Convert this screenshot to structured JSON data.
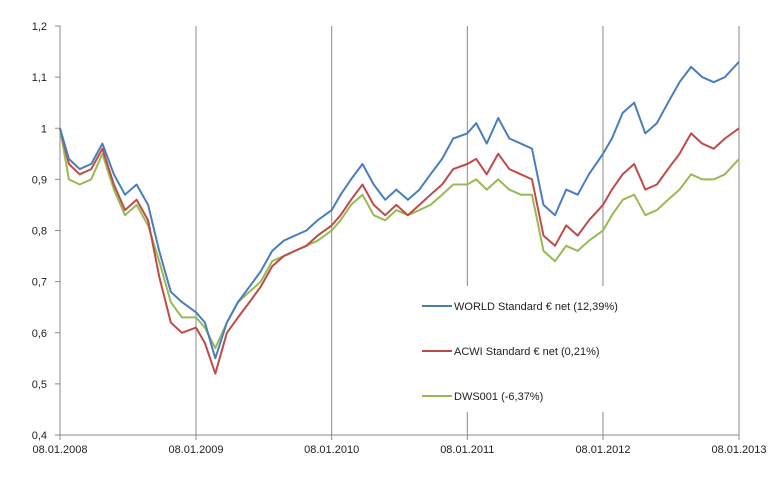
{
  "chart_data": {
    "type": "line",
    "title": "",
    "xlabel": "",
    "ylabel": "",
    "ylim": [
      0.4,
      1.2
    ],
    "yticks": [
      "0,4",
      "0,5",
      "0,6",
      "0,7",
      "0,8",
      "0,9",
      "1",
      "1,1",
      "1,2"
    ],
    "xticks": [
      "08.01.2008",
      "08.01.2009",
      "08.01.2010",
      "08.01.2011",
      "08.01.2012",
      "08.01.2013"
    ],
    "grid": "vertical-major",
    "legend_position": "center-right",
    "series": [
      {
        "name": "WORLD Standard € net (12,39%)",
        "color": "#4a7ebb",
        "points": [
          [
            "08.01.2008",
            1.0
          ],
          [
            "01.02.2008",
            0.94
          ],
          [
            "01.03.2008",
            0.92
          ],
          [
            "01.04.2008",
            0.93
          ],
          [
            "01.05.2008",
            0.97
          ],
          [
            "01.06.2008",
            0.91
          ],
          [
            "01.07.2008",
            0.87
          ],
          [
            "01.08.2008",
            0.89
          ],
          [
            "01.09.2008",
            0.85
          ],
          [
            "01.10.2008",
            0.76
          ],
          [
            "01.11.2008",
            0.68
          ],
          [
            "01.12.2008",
            0.66
          ],
          [
            "08.01.2009",
            0.64
          ],
          [
            "01.02.2009",
            0.62
          ],
          [
            "01.03.2009",
            0.55
          ],
          [
            "01.04.2009",
            0.62
          ],
          [
            "01.05.2009",
            0.66
          ],
          [
            "01.06.2009",
            0.69
          ],
          [
            "01.07.2009",
            0.72
          ],
          [
            "01.08.2009",
            0.76
          ],
          [
            "01.09.2009",
            0.78
          ],
          [
            "01.10.2009",
            0.79
          ],
          [
            "01.11.2009",
            0.8
          ],
          [
            "01.12.2009",
            0.82
          ],
          [
            "08.01.2010",
            0.84
          ],
          [
            "01.02.2010",
            0.87
          ],
          [
            "01.03.2010",
            0.9
          ],
          [
            "01.04.2010",
            0.93
          ],
          [
            "01.05.2010",
            0.89
          ],
          [
            "01.06.2010",
            0.86
          ],
          [
            "01.07.2010",
            0.88
          ],
          [
            "01.08.2010",
            0.86
          ],
          [
            "01.09.2010",
            0.88
          ],
          [
            "01.10.2010",
            0.91
          ],
          [
            "01.11.2010",
            0.94
          ],
          [
            "01.12.2010",
            0.98
          ],
          [
            "08.01.2011",
            0.99
          ],
          [
            "01.02.2011",
            1.01
          ],
          [
            "01.03.2011",
            0.97
          ],
          [
            "01.04.2011",
            1.02
          ],
          [
            "01.05.2011",
            0.98
          ],
          [
            "01.06.2011",
            0.97
          ],
          [
            "01.07.2011",
            0.96
          ],
          [
            "01.08.2011",
            0.85
          ],
          [
            "01.09.2011",
            0.83
          ],
          [
            "01.10.2011",
            0.88
          ],
          [
            "01.11.2011",
            0.87
          ],
          [
            "01.12.2011",
            0.91
          ],
          [
            "08.01.2012",
            0.95
          ],
          [
            "01.02.2012",
            0.98
          ],
          [
            "01.03.2012",
            1.03
          ],
          [
            "01.04.2012",
            1.05
          ],
          [
            "01.05.2012",
            0.99
          ],
          [
            "01.06.2012",
            1.01
          ],
          [
            "01.07.2012",
            1.05
          ],
          [
            "01.08.2012",
            1.09
          ],
          [
            "01.09.2012",
            1.12
          ],
          [
            "01.10.2012",
            1.1
          ],
          [
            "01.11.2012",
            1.09
          ],
          [
            "01.12.2012",
            1.1
          ],
          [
            "08.01.2013",
            1.13
          ]
        ]
      },
      {
        "name": "ACWI Standard € net (0,21%)",
        "color": "#be4b48",
        "points": [
          [
            "08.01.2008",
            1.0
          ],
          [
            "01.02.2008",
            0.93
          ],
          [
            "01.03.2008",
            0.91
          ],
          [
            "01.04.2008",
            0.92
          ],
          [
            "01.05.2008",
            0.96
          ],
          [
            "01.06.2008",
            0.89
          ],
          [
            "01.07.2008",
            0.84
          ],
          [
            "01.08.2008",
            0.86
          ],
          [
            "01.09.2008",
            0.82
          ],
          [
            "01.10.2008",
            0.71
          ],
          [
            "01.11.2008",
            0.62
          ],
          [
            "01.12.2008",
            0.6
          ],
          [
            "08.01.2009",
            0.61
          ],
          [
            "01.02.2009",
            0.58
          ],
          [
            "01.03.2009",
            0.52
          ],
          [
            "01.04.2009",
            0.6
          ],
          [
            "01.05.2009",
            0.63
          ],
          [
            "01.06.2009",
            0.66
          ],
          [
            "01.07.2009",
            0.69
          ],
          [
            "01.08.2009",
            0.73
          ],
          [
            "01.09.2009",
            0.75
          ],
          [
            "01.10.2009",
            0.76
          ],
          [
            "01.11.2009",
            0.77
          ],
          [
            "01.12.2009",
            0.79
          ],
          [
            "08.01.2010",
            0.81
          ],
          [
            "01.02.2010",
            0.83
          ],
          [
            "01.03.2010",
            0.86
          ],
          [
            "01.04.2010",
            0.89
          ],
          [
            "01.05.2010",
            0.85
          ],
          [
            "01.06.2010",
            0.83
          ],
          [
            "01.07.2010",
            0.85
          ],
          [
            "01.08.2010",
            0.83
          ],
          [
            "01.09.2010",
            0.85
          ],
          [
            "01.10.2010",
            0.87
          ],
          [
            "01.11.2010",
            0.89
          ],
          [
            "01.12.2010",
            0.92
          ],
          [
            "08.01.2011",
            0.93
          ],
          [
            "01.02.2011",
            0.94
          ],
          [
            "01.03.2011",
            0.91
          ],
          [
            "01.04.2011",
            0.95
          ],
          [
            "01.05.2011",
            0.92
          ],
          [
            "01.06.2011",
            0.91
          ],
          [
            "01.07.2011",
            0.9
          ],
          [
            "01.08.2011",
            0.79
          ],
          [
            "01.09.2011",
            0.77
          ],
          [
            "01.10.2011",
            0.81
          ],
          [
            "01.11.2011",
            0.79
          ],
          [
            "01.12.2011",
            0.82
          ],
          [
            "08.01.2012",
            0.85
          ],
          [
            "01.02.2012",
            0.88
          ],
          [
            "01.03.2012",
            0.91
          ],
          [
            "01.04.2012",
            0.93
          ],
          [
            "01.05.2012",
            0.88
          ],
          [
            "01.06.2012",
            0.89
          ],
          [
            "01.07.2012",
            0.92
          ],
          [
            "01.08.2012",
            0.95
          ],
          [
            "01.09.2012",
            0.99
          ],
          [
            "01.10.2012",
            0.97
          ],
          [
            "01.11.2012",
            0.96
          ],
          [
            "01.12.2012",
            0.98
          ],
          [
            "08.01.2013",
            1.0
          ]
        ]
      },
      {
        "name": "DWS001 (-6,37%)",
        "color": "#98b954",
        "points": [
          [
            "08.01.2008",
            1.0
          ],
          [
            "01.02.2008",
            0.9
          ],
          [
            "01.03.2008",
            0.89
          ],
          [
            "01.04.2008",
            0.9
          ],
          [
            "01.05.2008",
            0.95
          ],
          [
            "01.06.2008",
            0.88
          ],
          [
            "01.07.2008",
            0.83
          ],
          [
            "01.08.2008",
            0.85
          ],
          [
            "01.09.2008",
            0.81
          ],
          [
            "01.10.2008",
            0.74
          ],
          [
            "01.11.2008",
            0.66
          ],
          [
            "01.12.2008",
            0.63
          ],
          [
            "08.01.2009",
            0.63
          ],
          [
            "01.02.2009",
            0.61
          ],
          [
            "01.03.2009",
            0.57
          ],
          [
            "01.04.2009",
            0.62
          ],
          [
            "01.05.2009",
            0.66
          ],
          [
            "01.06.2009",
            0.68
          ],
          [
            "01.07.2009",
            0.7
          ],
          [
            "01.08.2009",
            0.74
          ],
          [
            "01.09.2009",
            0.75
          ],
          [
            "01.10.2009",
            0.76
          ],
          [
            "01.11.2009",
            0.77
          ],
          [
            "01.12.2009",
            0.78
          ],
          [
            "08.01.2010",
            0.8
          ],
          [
            "01.02.2010",
            0.82
          ],
          [
            "01.03.2010",
            0.85
          ],
          [
            "01.04.2010",
            0.87
          ],
          [
            "01.05.2010",
            0.83
          ],
          [
            "01.06.2010",
            0.82
          ],
          [
            "01.07.2010",
            0.84
          ],
          [
            "01.08.2010",
            0.83
          ],
          [
            "01.09.2010",
            0.84
          ],
          [
            "01.10.2010",
            0.85
          ],
          [
            "01.11.2010",
            0.87
          ],
          [
            "01.12.2010",
            0.89
          ],
          [
            "08.01.2011",
            0.89
          ],
          [
            "01.02.2011",
            0.9
          ],
          [
            "01.03.2011",
            0.88
          ],
          [
            "01.04.2011",
            0.9
          ],
          [
            "01.05.2011",
            0.88
          ],
          [
            "01.06.2011",
            0.87
          ],
          [
            "01.07.2011",
            0.87
          ],
          [
            "01.08.2011",
            0.76
          ],
          [
            "01.09.2011",
            0.74
          ],
          [
            "01.10.2011",
            0.77
          ],
          [
            "01.11.2011",
            0.76
          ],
          [
            "01.12.2011",
            0.78
          ],
          [
            "08.01.2012",
            0.8
          ],
          [
            "01.02.2012",
            0.83
          ],
          [
            "01.03.2012",
            0.86
          ],
          [
            "01.04.2012",
            0.87
          ],
          [
            "01.05.2012",
            0.83
          ],
          [
            "01.06.2012",
            0.84
          ],
          [
            "01.07.2012",
            0.86
          ],
          [
            "01.08.2012",
            0.88
          ],
          [
            "01.09.2012",
            0.91
          ],
          [
            "01.10.2012",
            0.9
          ],
          [
            "01.11.2012",
            0.9
          ],
          [
            "01.12.2012",
            0.91
          ],
          [
            "08.01.2013",
            0.94
          ]
        ]
      }
    ]
  }
}
